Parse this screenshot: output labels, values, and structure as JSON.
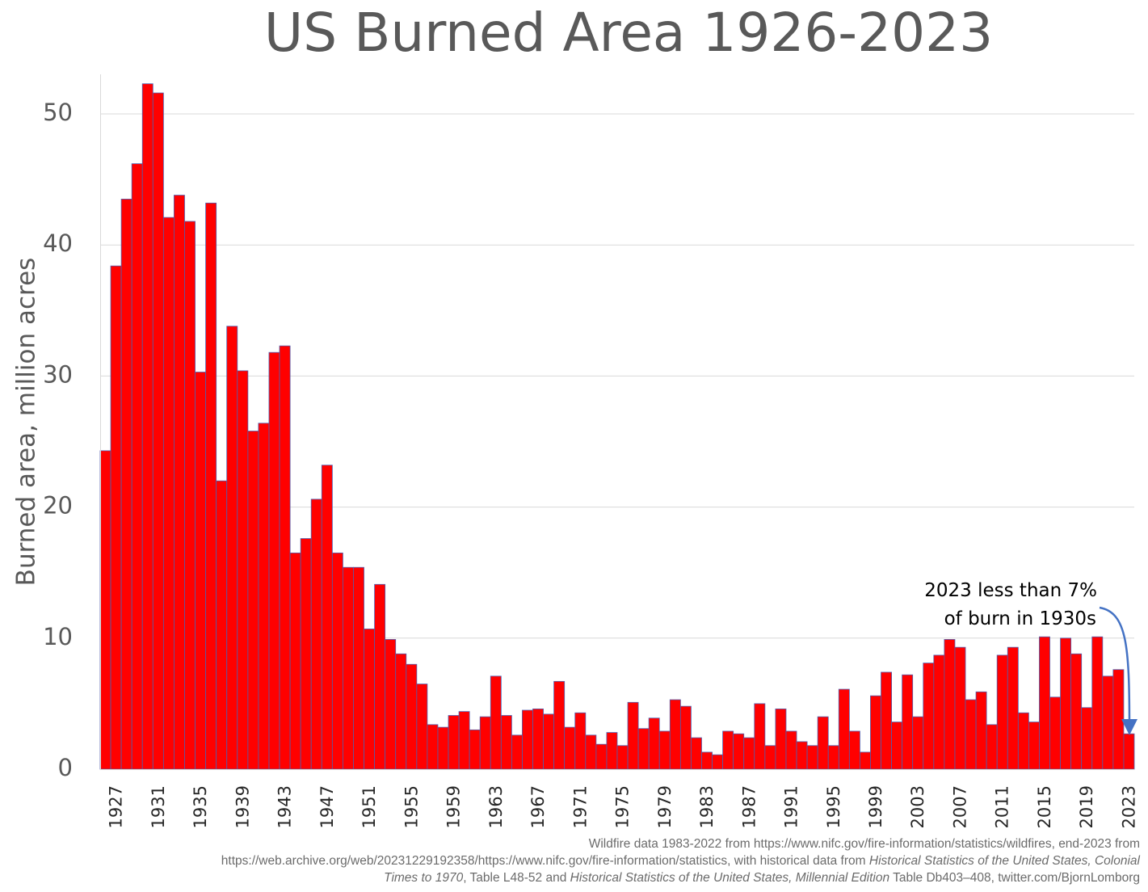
{
  "chart_data": {
    "type": "bar",
    "title": "US Burned Area 1926-2023",
    "ylabel": "Burned area, million acres",
    "xlabel": "",
    "ylim": [
      0,
      53
    ],
    "yticks": [
      0,
      10,
      20,
      30,
      40,
      50
    ],
    "grid": "horizontal",
    "bar_color": "#ff0000",
    "bar_edge_color": "#4f5fb0",
    "x": [
      1926,
      1927,
      1928,
      1929,
      1930,
      1931,
      1932,
      1933,
      1934,
      1935,
      1936,
      1937,
      1938,
      1939,
      1940,
      1941,
      1942,
      1943,
      1944,
      1945,
      1946,
      1947,
      1948,
      1949,
      1950,
      1951,
      1952,
      1953,
      1954,
      1955,
      1956,
      1957,
      1958,
      1959,
      1960,
      1961,
      1962,
      1963,
      1964,
      1965,
      1966,
      1967,
      1968,
      1969,
      1970,
      1971,
      1972,
      1973,
      1974,
      1975,
      1976,
      1977,
      1978,
      1979,
      1980,
      1981,
      1982,
      1983,
      1984,
      1985,
      1986,
      1987,
      1988,
      1989,
      1990,
      1991,
      1992,
      1993,
      1994,
      1995,
      1996,
      1997,
      1998,
      1999,
      2000,
      2001,
      2002,
      2003,
      2004,
      2005,
      2006,
      2007,
      2008,
      2009,
      2010,
      2011,
      2012,
      2013,
      2014,
      2015,
      2016,
      2017,
      2018,
      2019,
      2020,
      2021,
      2022,
      2023
    ],
    "values": [
      24.3,
      38.4,
      43.5,
      46.2,
      52.3,
      51.6,
      42.1,
      43.8,
      41.8,
      30.3,
      43.2,
      22.0,
      33.8,
      30.4,
      25.8,
      26.4,
      31.8,
      32.3,
      16.5,
      17.6,
      20.6,
      23.2,
      16.5,
      15.4,
      15.4,
      10.7,
      14.1,
      9.9,
      8.8,
      8.0,
      6.5,
      3.4,
      3.2,
      4.1,
      4.4,
      3.0,
      4.0,
      7.1,
      4.1,
      2.6,
      4.5,
      4.6,
      4.2,
      6.7,
      3.2,
      4.3,
      2.6,
      1.9,
      2.8,
      1.8,
      5.1,
      3.1,
      3.9,
      2.9,
      5.3,
      4.8,
      2.4,
      1.3,
      1.1,
      2.9,
      2.7,
      2.4,
      5.0,
      1.8,
      4.6,
      2.9,
      2.1,
      1.8,
      4.0,
      1.8,
      6.1,
      2.9,
      1.3,
      5.6,
      7.4,
      3.6,
      7.2,
      4.0,
      8.1,
      8.7,
      9.9,
      9.3,
      5.3,
      5.9,
      3.4,
      8.7,
      9.3,
      4.3,
      3.6,
      10.1,
      5.5,
      10.0,
      8.8,
      4.7,
      10.1,
      7.1,
      7.6,
      2.7
    ],
    "xticks": [
      "1927",
      "1931",
      "1935",
      "1939",
      "1943",
      "1947",
      "1951",
      "1955",
      "1959",
      "1963",
      "1967",
      "1971",
      "1975",
      "1979",
      "1983",
      "1987",
      "1991",
      "1995",
      "1999",
      "2003",
      "2007",
      "2011",
      "2015",
      "2019",
      "2023"
    ],
    "annotation": {
      "line1": "2023 less than 7%",
      "line2": "of burn in 1930s",
      "arrow_color": "#4472c4"
    }
  },
  "source": {
    "line1": "Wildfire data 1983-2022 from https://www.nifc.gov/fire-information/statistics/wildfires, end-2023 from",
    "line2a": "https://web.archive.org/web/20231229192358/https://www.nifc.gov/fire-information/statistics, with historical data from ",
    "line2b": "Historical Statistics of the United States, Colonial",
    "line3a": "Times to 1970",
    "line3b": ", Table L48-52 and ",
    "line3c": "Historical Statistics of the United States, Millennial Edition",
    "line3d": " Table Db403–408, twitter.com/BjornLomborg"
  }
}
